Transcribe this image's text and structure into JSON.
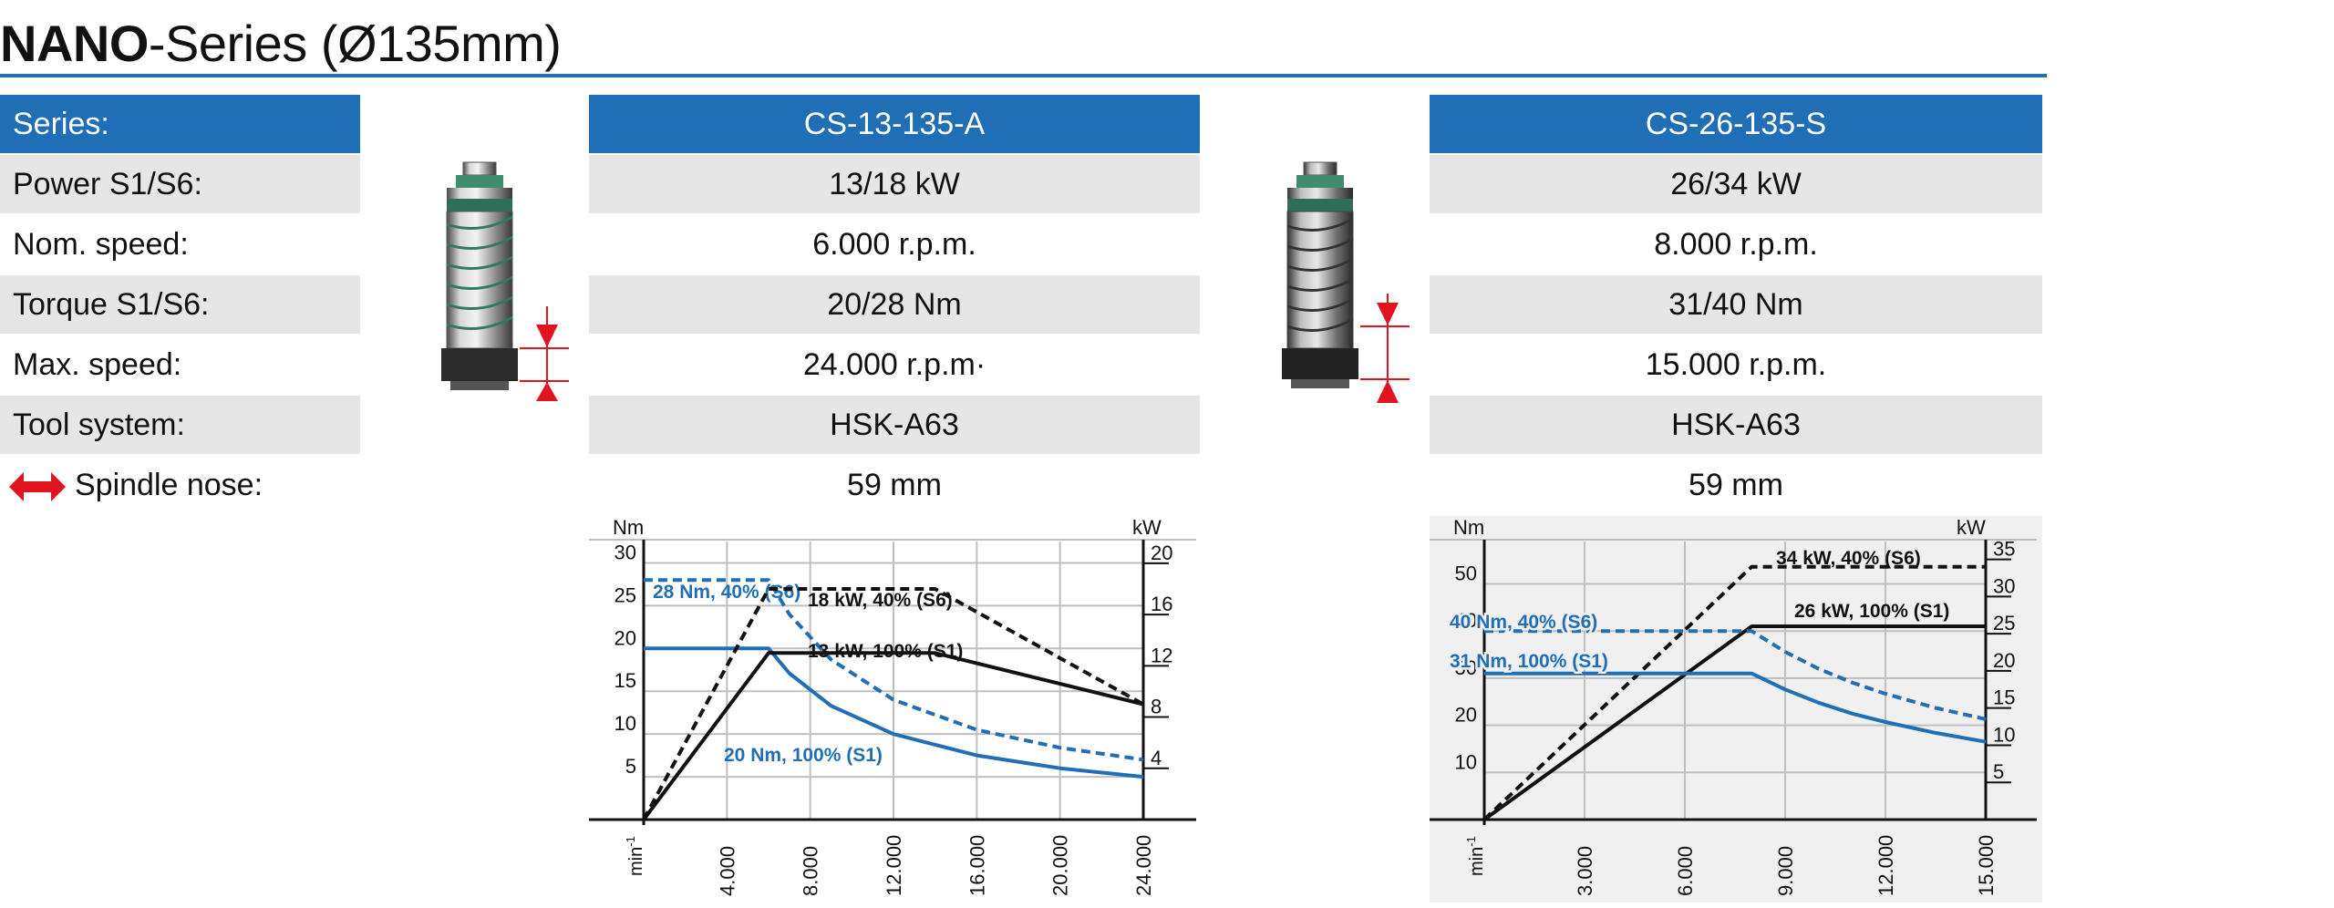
{
  "title": {
    "bold": "NANO",
    "rest": "-Series (Ø135mm)"
  },
  "spec_table": {
    "labels": [
      "Series:",
      "Power S1/S6:",
      "Nom. speed:",
      "Torque S1/S6:",
      "Max. speed:",
      "Tool system:",
      "Spindle nose:"
    ],
    "models": [
      {
        "series": "CS-13-135-A",
        "power": "13/18 kW",
        "nom_speed": "6.000 r.p.m.",
        "torque": "20/28 Nm",
        "max_speed": "24.000 r.p.m·",
        "tool_system": "HSK-A63",
        "spindle_nose": "59 mm"
      },
      {
        "series": "CS-26-135-S",
        "power": "26/34 kW",
        "nom_speed": "8.000 r.p.m.",
        "torque": "31/40 Nm",
        "max_speed": "15.000 r.p.m.",
        "tool_system": "HSK-A63",
        "spindle_nose": "59 mm"
      }
    ]
  },
  "icons": {
    "spindle": "spindle-motor-image",
    "nose": "double-arrow-icon",
    "dimension": "dimension-arrows-icon"
  },
  "colors": {
    "accent": "#1f6eb6",
    "header_text": "#ffffff",
    "row_shade": "#e6e6e6",
    "torque_line": "#1f6eb6",
    "power_line": "#111111",
    "chart2_bg": "#f0f0f0",
    "nose_arrow": "#e0141e"
  },
  "chart_data": [
    {
      "type": "line",
      "x_ticks": [
        "4.000",
        "8.000",
        "12.000",
        "16.000",
        "20.000",
        "24.000"
      ],
      "x_unit": "min-1",
      "xlim": [
        0,
        24000
      ],
      "y_left": {
        "label": "Nm",
        "ticks": [
          "30",
          "25",
          "20",
          "15",
          "10",
          "5"
        ],
        "lim": [
          0,
          32.5
        ]
      },
      "y_right": {
        "label": "kW",
        "ticks": [
          "20",
          "16",
          "12",
          "8",
          "4"
        ],
        "lim": [
          0,
          21.7
        ]
      },
      "grid": true,
      "series": [
        {
          "name": "28 Nm, 40% (S6)",
          "axis": "left",
          "style": "dashed",
          "color": "#1f6eb6",
          "x": [
            0,
            6000,
            7000,
            9000,
            12000,
            16000,
            20000,
            24000
          ],
          "y": [
            28,
            28,
            24,
            18.7,
            14,
            10.5,
            8.4,
            7
          ]
        },
        {
          "name": "20 Nm, 100% (S1)",
          "axis": "left",
          "style": "solid",
          "color": "#1f6eb6",
          "x": [
            0,
            6000,
            7000,
            9000,
            12000,
            16000,
            20000,
            24000
          ],
          "y": [
            20,
            20,
            17.1,
            13.3,
            10,
            7.5,
            6,
            5
          ]
        },
        {
          "name": "18 kW, 40% (S6)",
          "axis": "right",
          "style": "dashed",
          "color": "#111111",
          "x": [
            0,
            6000,
            14000,
            24000
          ],
          "y": [
            0,
            18,
            18,
            9
          ]
        },
        {
          "name": "13 kW, 100% (S1)",
          "axis": "right",
          "style": "solid",
          "color": "#111111",
          "x": [
            0,
            6000,
            14000,
            24000
          ],
          "y": [
            0,
            13,
            13,
            9
          ]
        }
      ]
    },
    {
      "type": "line",
      "x_ticks": [
        "3.000",
        "6.000",
        "9.000",
        "12.000",
        "15.000"
      ],
      "x_unit": "min-1",
      "xlim": [
        0,
        15000
      ],
      "y_left": {
        "label": "Nm",
        "ticks": [
          "50",
          "40",
          "30",
          "20",
          "10"
        ],
        "lim": [
          0,
          59
        ]
      },
      "y_right": {
        "label": "kW",
        "ticks": [
          "35",
          "30",
          "25",
          "20",
          "15",
          "10",
          "5"
        ],
        "lim": [
          0,
          37.4
        ]
      },
      "grid": true,
      "series": [
        {
          "name": "34 kW, 40% (S6)",
          "axis": "right",
          "style": "dashed",
          "color": "#111111",
          "x": [
            0,
            8000,
            15000
          ],
          "y": [
            0,
            34,
            34
          ]
        },
        {
          "name": "26 kW, 100% (S1)",
          "axis": "right",
          "style": "solid",
          "color": "#111111",
          "x": [
            0,
            8000,
            15000
          ],
          "y": [
            0,
            26,
            26
          ]
        },
        {
          "name": "40 Nm, 40% (S6)",
          "axis": "left",
          "style": "dashed",
          "color": "#1f6eb6",
          "x": [
            0,
            8000,
            9000,
            10000,
            11000,
            12000,
            13500,
            15000
          ],
          "y": [
            40,
            40,
            35.6,
            32,
            29.1,
            26.7,
            23.7,
            21.3
          ]
        },
        {
          "name": "31 Nm, 100% (S1)",
          "axis": "left",
          "style": "solid",
          "color": "#1f6eb6",
          "x": [
            0,
            8000,
            9000,
            10000,
            11000,
            12000,
            13500,
            15000
          ],
          "y": [
            31,
            31,
            27.6,
            24.8,
            22.5,
            20.7,
            18.4,
            16.5
          ]
        }
      ]
    }
  ]
}
